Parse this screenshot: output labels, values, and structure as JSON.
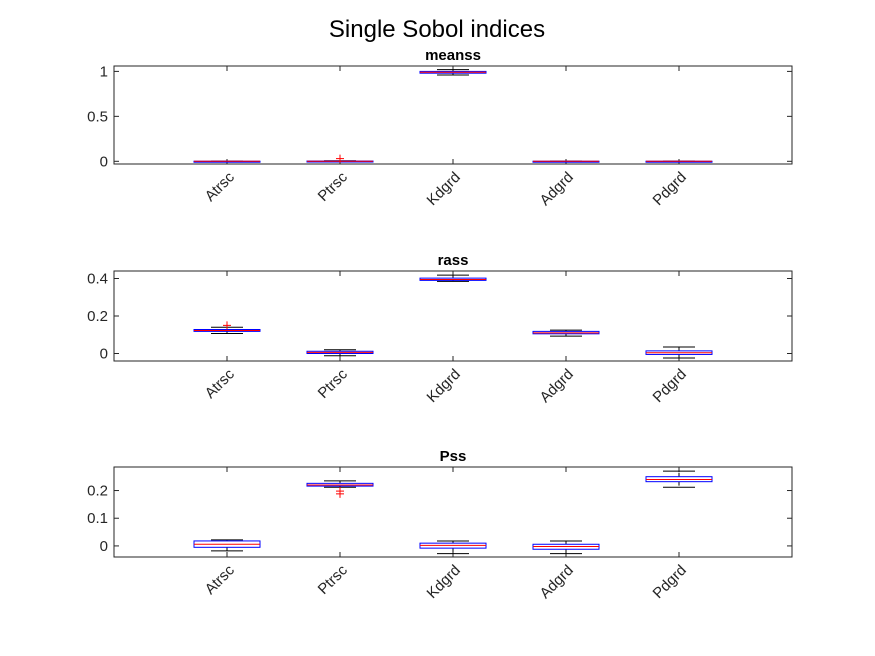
{
  "figure_title": "Single Sobol indices",
  "colors": {
    "box": "#0000ff",
    "median": "#ff0000",
    "whisker": "#000000",
    "outlier": "#ff0000",
    "axis": "#262626"
  },
  "chart_data": [
    {
      "type": "boxplot",
      "title": "meanss",
      "categories": [
        "Atrsc",
        "Ptrsc",
        "Kdgrd",
        "Adgrd",
        "Pdgrd"
      ],
      "ylim": [
        -0.03,
        1.06
      ],
      "yticks": [
        "0",
        "0.5",
        "1"
      ],
      "boxes": [
        {
          "whisker_low": -0.002,
          "q1": -0.001,
          "median": 0.0,
          "q3": 0.001,
          "whisker_high": 0.002,
          "outliers": []
        },
        {
          "whisker_low": -0.003,
          "q1": -0.002,
          "median": 0.001,
          "q3": 0.003,
          "whisker_high": 0.006,
          "outliers": [
            0.03
          ]
        },
        {
          "whisker_low": 0.96,
          "q1": 0.98,
          "median": 0.99,
          "q3": 1.0,
          "whisker_high": 1.02,
          "outliers": []
        },
        {
          "whisker_low": -0.002,
          "q1": -0.001,
          "median": 0.0,
          "q3": 0.001,
          "whisker_high": 0.002,
          "outliers": []
        },
        {
          "whisker_low": -0.002,
          "q1": -0.001,
          "median": 0.0,
          "q3": 0.001,
          "whisker_high": 0.002,
          "outliers": []
        }
      ],
      "grid": false
    },
    {
      "type": "boxplot",
      "title": "rass",
      "categories": [
        "Atrsc",
        "Ptrsc",
        "Kdgrd",
        "Adgrd",
        "Pdgrd"
      ],
      "ylim": [
        -0.04,
        0.44
      ],
      "yticks": [
        "0",
        "0.2",
        "0.4"
      ],
      "boxes": [
        {
          "whisker_low": 0.107,
          "q1": 0.118,
          "median": 0.123,
          "q3": 0.128,
          "whisker_high": 0.14,
          "outliers": [
            0.15
          ]
        },
        {
          "whisker_low": -0.012,
          "q1": 0.0,
          "median": 0.006,
          "q3": 0.012,
          "whisker_high": 0.02,
          "outliers": []
        },
        {
          "whisker_low": 0.385,
          "q1": 0.39,
          "median": 0.395,
          "q3": 0.402,
          "whisker_high": 0.418,
          "outliers": []
        },
        {
          "whisker_low": 0.093,
          "q1": 0.105,
          "median": 0.11,
          "q3": 0.118,
          "whisker_high": 0.125,
          "outliers": []
        },
        {
          "whisker_low": -0.024,
          "q1": -0.005,
          "median": 0.004,
          "q3": 0.014,
          "whisker_high": 0.035,
          "outliers": []
        }
      ],
      "grid": false
    },
    {
      "type": "boxplot",
      "title": "Pss",
      "categories": [
        "Atrsc",
        "Ptrsc",
        "Kdgrd",
        "Adgrd",
        "Pdgrd"
      ],
      "ylim": [
        -0.04,
        0.285
      ],
      "yticks": [
        "0",
        "0.1",
        "0.2"
      ],
      "boxes": [
        {
          "whisker_low": -0.018,
          "q1": -0.005,
          "median": 0.006,
          "q3": 0.018,
          "whisker_high": 0.022,
          "outliers": []
        },
        {
          "whisker_low": 0.212,
          "q1": 0.216,
          "median": 0.22,
          "q3": 0.226,
          "whisker_high": 0.235,
          "outliers": [
            0.198,
            0.188
          ]
        },
        {
          "whisker_low": -0.028,
          "q1": -0.008,
          "median": 0.002,
          "q3": 0.01,
          "whisker_high": 0.018,
          "outliers": []
        },
        {
          "whisker_low": -0.028,
          "q1": -0.012,
          "median": -0.002,
          "q3": 0.006,
          "whisker_high": 0.018,
          "outliers": []
        },
        {
          "whisker_low": 0.212,
          "q1": 0.232,
          "median": 0.24,
          "q3": 0.25,
          "whisker_high": 0.27,
          "outliers": []
        }
      ],
      "grid": false
    }
  ]
}
